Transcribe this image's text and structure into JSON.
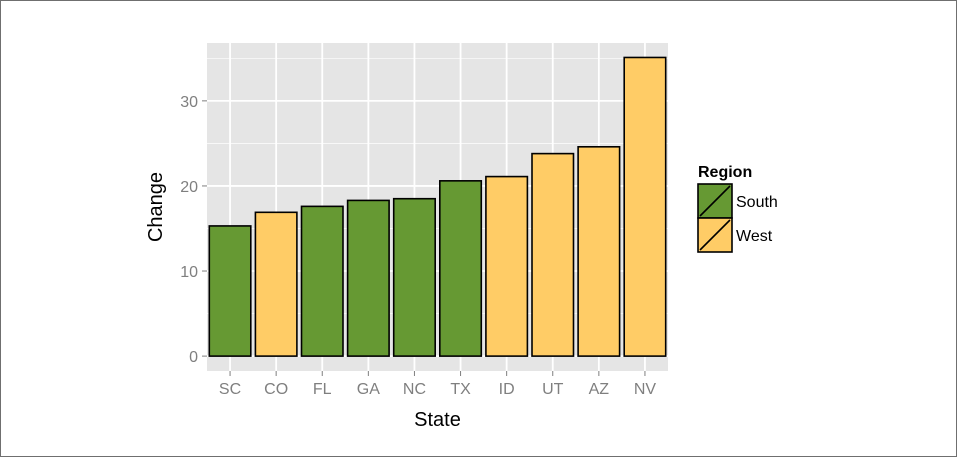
{
  "chart_data": {
    "type": "bar",
    "categories": [
      "SC",
      "CO",
      "FL",
      "GA",
      "NC",
      "TX",
      "ID",
      "UT",
      "AZ",
      "NV"
    ],
    "values": [
      15.3,
      16.9,
      17.6,
      18.3,
      18.5,
      20.6,
      21.1,
      23.8,
      24.6,
      35.1
    ],
    "groups": [
      "South",
      "West",
      "South",
      "South",
      "South",
      "South",
      "West",
      "West",
      "West",
      "West"
    ],
    "xlabel": "State",
    "ylabel": "Change",
    "ylim": [
      -1.75,
      36.8
    ],
    "yticks": [
      0,
      10,
      20,
      30
    ],
    "grid": true,
    "legend": {
      "title": "Region",
      "placement": "right",
      "entries": [
        {
          "name": "South",
          "color": "#669933"
        },
        {
          "name": "West",
          "color": "#FFCC66"
        }
      ]
    },
    "colors": {
      "panel": "#E5E5E5",
      "grid": "#FFFFFF",
      "bar_border": "#000000"
    }
  }
}
